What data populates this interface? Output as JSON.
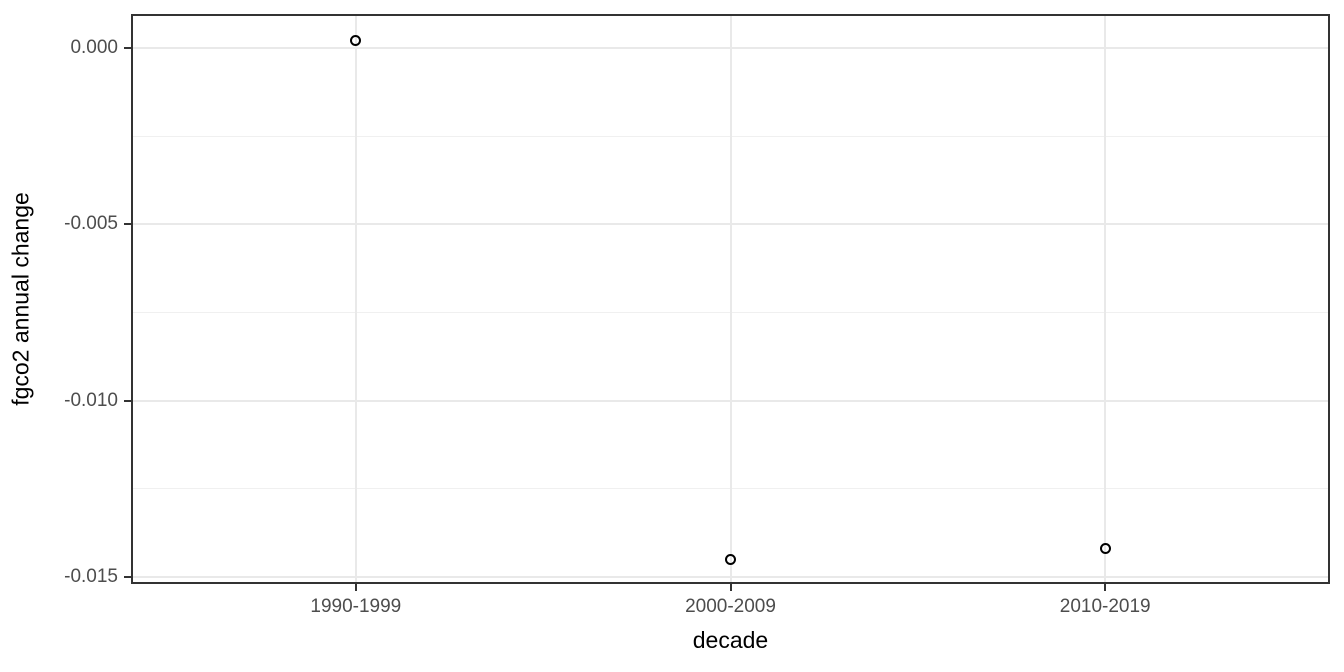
{
  "chart_data": {
    "type": "scatter",
    "title": "",
    "xlabel": "decade",
    "ylabel": "fgco2 annual change",
    "categories": [
      "1990-1999",
      "2000-2009",
      "2010-2019"
    ],
    "values": [
      0.0002,
      -0.0145,
      -0.0142
    ],
    "ylim": [
      -0.0152,
      0.00096
    ],
    "yticks": [
      0,
      -0.005,
      -0.01,
      -0.015
    ],
    "ytick_labels": [
      "0.000",
      "-0.005",
      "-0.010",
      "-0.015"
    ],
    "yticks_minor": [
      -0.0025,
      -0.0075,
      -0.0125
    ],
    "grid": "on",
    "legend": "none",
    "marker": "open-circle",
    "colors": {
      "background": "#ffffff",
      "panel_border": "#333333",
      "grid_major": "#e9e9e9",
      "grid_minor": "#f0f0f0",
      "tick_label": "#4d4d4d",
      "axis_title": "#000000",
      "marker_stroke": "#000000"
    }
  }
}
